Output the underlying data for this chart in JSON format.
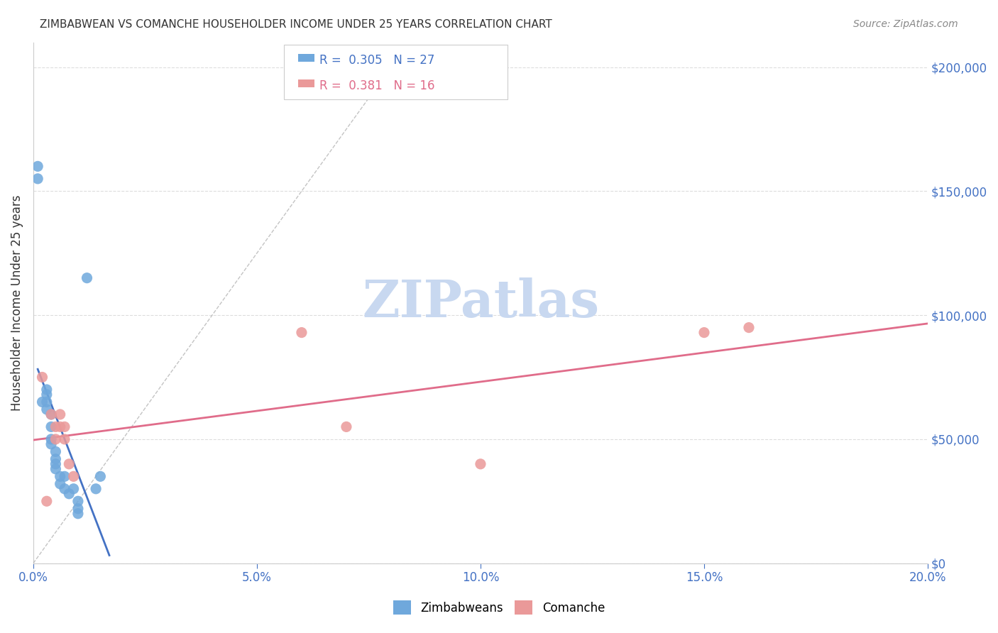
{
  "title": "ZIMBABWEAN VS COMANCHE HOUSEHOLDER INCOME UNDER 25 YEARS CORRELATION CHART",
  "source": "Source: ZipAtlas.com",
  "xlabel_color": "#4472c4",
  "ylabel": "Householder Income Under 25 years",
  "xlim": [
    0.0,
    0.2
  ],
  "ylim": [
    0,
    210000
  ],
  "xticks": [
    0.0,
    0.05,
    0.1,
    0.15,
    0.2
  ],
  "xtick_labels": [
    "0.0%",
    "5.0%",
    "10.0%",
    "15.0%",
    "20.0%"
  ],
  "yticks": [
    0,
    50000,
    100000,
    150000,
    200000
  ],
  "ytick_labels": [
    "$0",
    "$50,000",
    "$100,000",
    "$150,000",
    "$200,000"
  ],
  "zimbabwean_R": 0.305,
  "zimbabwean_N": 27,
  "comanche_R": 0.381,
  "comanche_N": 16,
  "blue_color": "#6fa8dc",
  "pink_color": "#ea9999",
  "blue_line_color": "#4472c4",
  "pink_line_color": "#e06c8a",
  "watermark": "ZIPatlas",
  "watermark_color": "#c8d8f0",
  "legend_label1": "Zimbabweans",
  "legend_label2": "Comanche",
  "zimbabwean_x": [
    0.001,
    0.001,
    0.002,
    0.003,
    0.003,
    0.003,
    0.003,
    0.004,
    0.004,
    0.004,
    0.004,
    0.005,
    0.005,
    0.005,
    0.005,
    0.006,
    0.006,
    0.007,
    0.007,
    0.008,
    0.009,
    0.01,
    0.01,
    0.01,
    0.012,
    0.014,
    0.015
  ],
  "zimbabwean_y": [
    155000,
    160000,
    65000,
    70000,
    68000,
    65000,
    62000,
    60000,
    55000,
    50000,
    48000,
    45000,
    42000,
    40000,
    38000,
    35000,
    32000,
    35000,
    30000,
    28000,
    30000,
    25000,
    22000,
    20000,
    115000,
    30000,
    35000
  ],
  "comanche_x": [
    0.002,
    0.003,
    0.004,
    0.005,
    0.005,
    0.006,
    0.006,
    0.007,
    0.007,
    0.008,
    0.009,
    0.06,
    0.07,
    0.1,
    0.15,
    0.16
  ],
  "comanche_y": [
    75000,
    25000,
    60000,
    55000,
    50000,
    60000,
    55000,
    55000,
    50000,
    40000,
    35000,
    93000,
    55000,
    40000,
    93000,
    95000
  ],
  "background_color": "#ffffff",
  "grid_color": "#dddddd"
}
